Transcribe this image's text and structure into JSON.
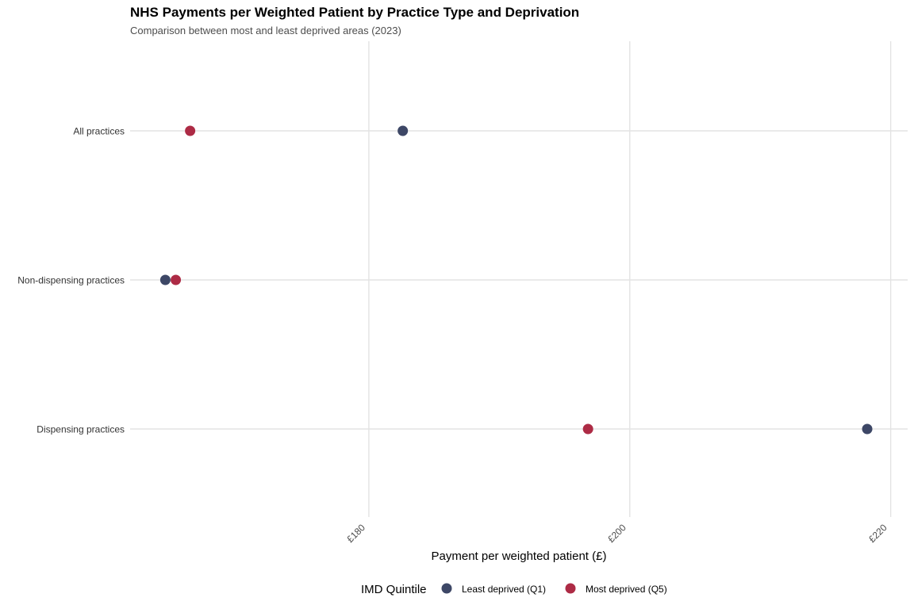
{
  "chart_data": {
    "type": "scatter",
    "title": "NHS Payments per Weighted Patient by Practice Type and Deprivation",
    "subtitle": "Comparison between most and least deprived areas (2023)",
    "xlabel": "Payment per weighted patient (£)",
    "ylabel": "",
    "xlim": [
      161.7,
      221.3
    ],
    "x_ticks": [
      180,
      200,
      220
    ],
    "x_tick_labels": [
      "£180",
      "£200",
      "£220"
    ],
    "categories": [
      "All practices",
      "Non-dispensing practices",
      "Dispensing practices"
    ],
    "series": [
      {
        "name": "Least deprived (Q1)",
        "color": "#3d4766",
        "values": [
          182.6,
          164.4,
          218.2
        ]
      },
      {
        "name": "Most deprived (Q5)",
        "color": "#ad2b45",
        "values": [
          166.3,
          165.2,
          196.8
        ]
      }
    ],
    "legend": {
      "title": "IMD Quintile",
      "position": "bottom"
    },
    "grid": true
  }
}
